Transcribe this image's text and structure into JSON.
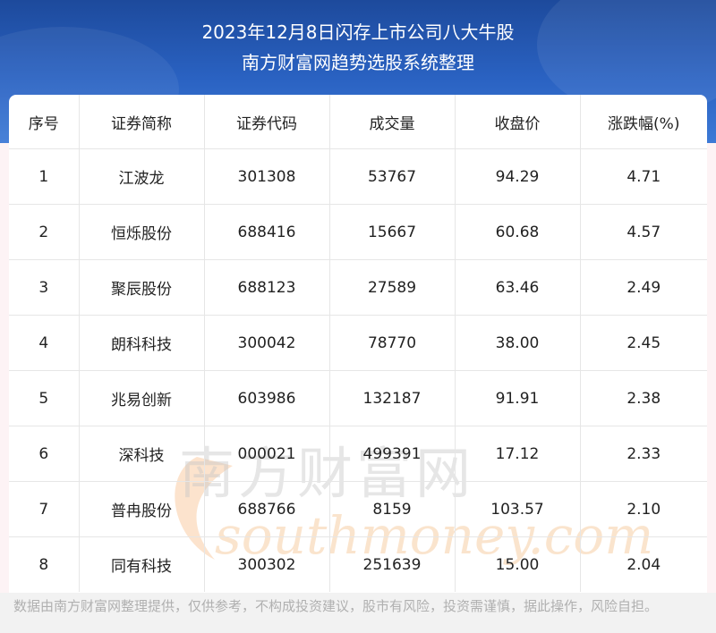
{
  "header": {
    "title_line1": "2023年12月8日闪存上市公司八大牛股",
    "title_line2": "南方财富网趋势选股系统整理"
  },
  "table": {
    "columns": [
      "序号",
      "证券简称",
      "证券代码",
      "成交量",
      "收盘价",
      "涨跌幅(%)"
    ],
    "rows": [
      [
        "1",
        "江波龙",
        "301308",
        "53767",
        "94.29",
        "4.71"
      ],
      [
        "2",
        "恒烁股份",
        "688416",
        "15667",
        "60.68",
        "4.57"
      ],
      [
        "3",
        "聚辰股份",
        "688123",
        "27589",
        "63.46",
        "2.49"
      ],
      [
        "4",
        "朗科科技",
        "300042",
        "78770",
        "38.00",
        "2.45"
      ],
      [
        "5",
        "兆易创新",
        "603986",
        "132187",
        "91.91",
        "2.38"
      ],
      [
        "6",
        "深科技",
        "000021",
        "499391",
        "17.12",
        "2.33"
      ],
      [
        "7",
        "普冉股份",
        "688766",
        "8159",
        "103.57",
        "2.10"
      ],
      [
        "8",
        "同有科技",
        "300302",
        "251639",
        "15.00",
        "2.04"
      ]
    ]
  },
  "watermark": {
    "text_cn": "南方财富网",
    "text_en": "southmoney.com"
  },
  "footer": {
    "disclaimer": "数据由南方财富网整理提供，仅供参考，不构成投资建议，股市有风险，投资需谨慎，据此操作，风险自担。"
  },
  "colors": {
    "header_blue": "#2a62c2",
    "watermark_orange": "#f0a050",
    "watermark_gray": "#c8c8c8"
  }
}
